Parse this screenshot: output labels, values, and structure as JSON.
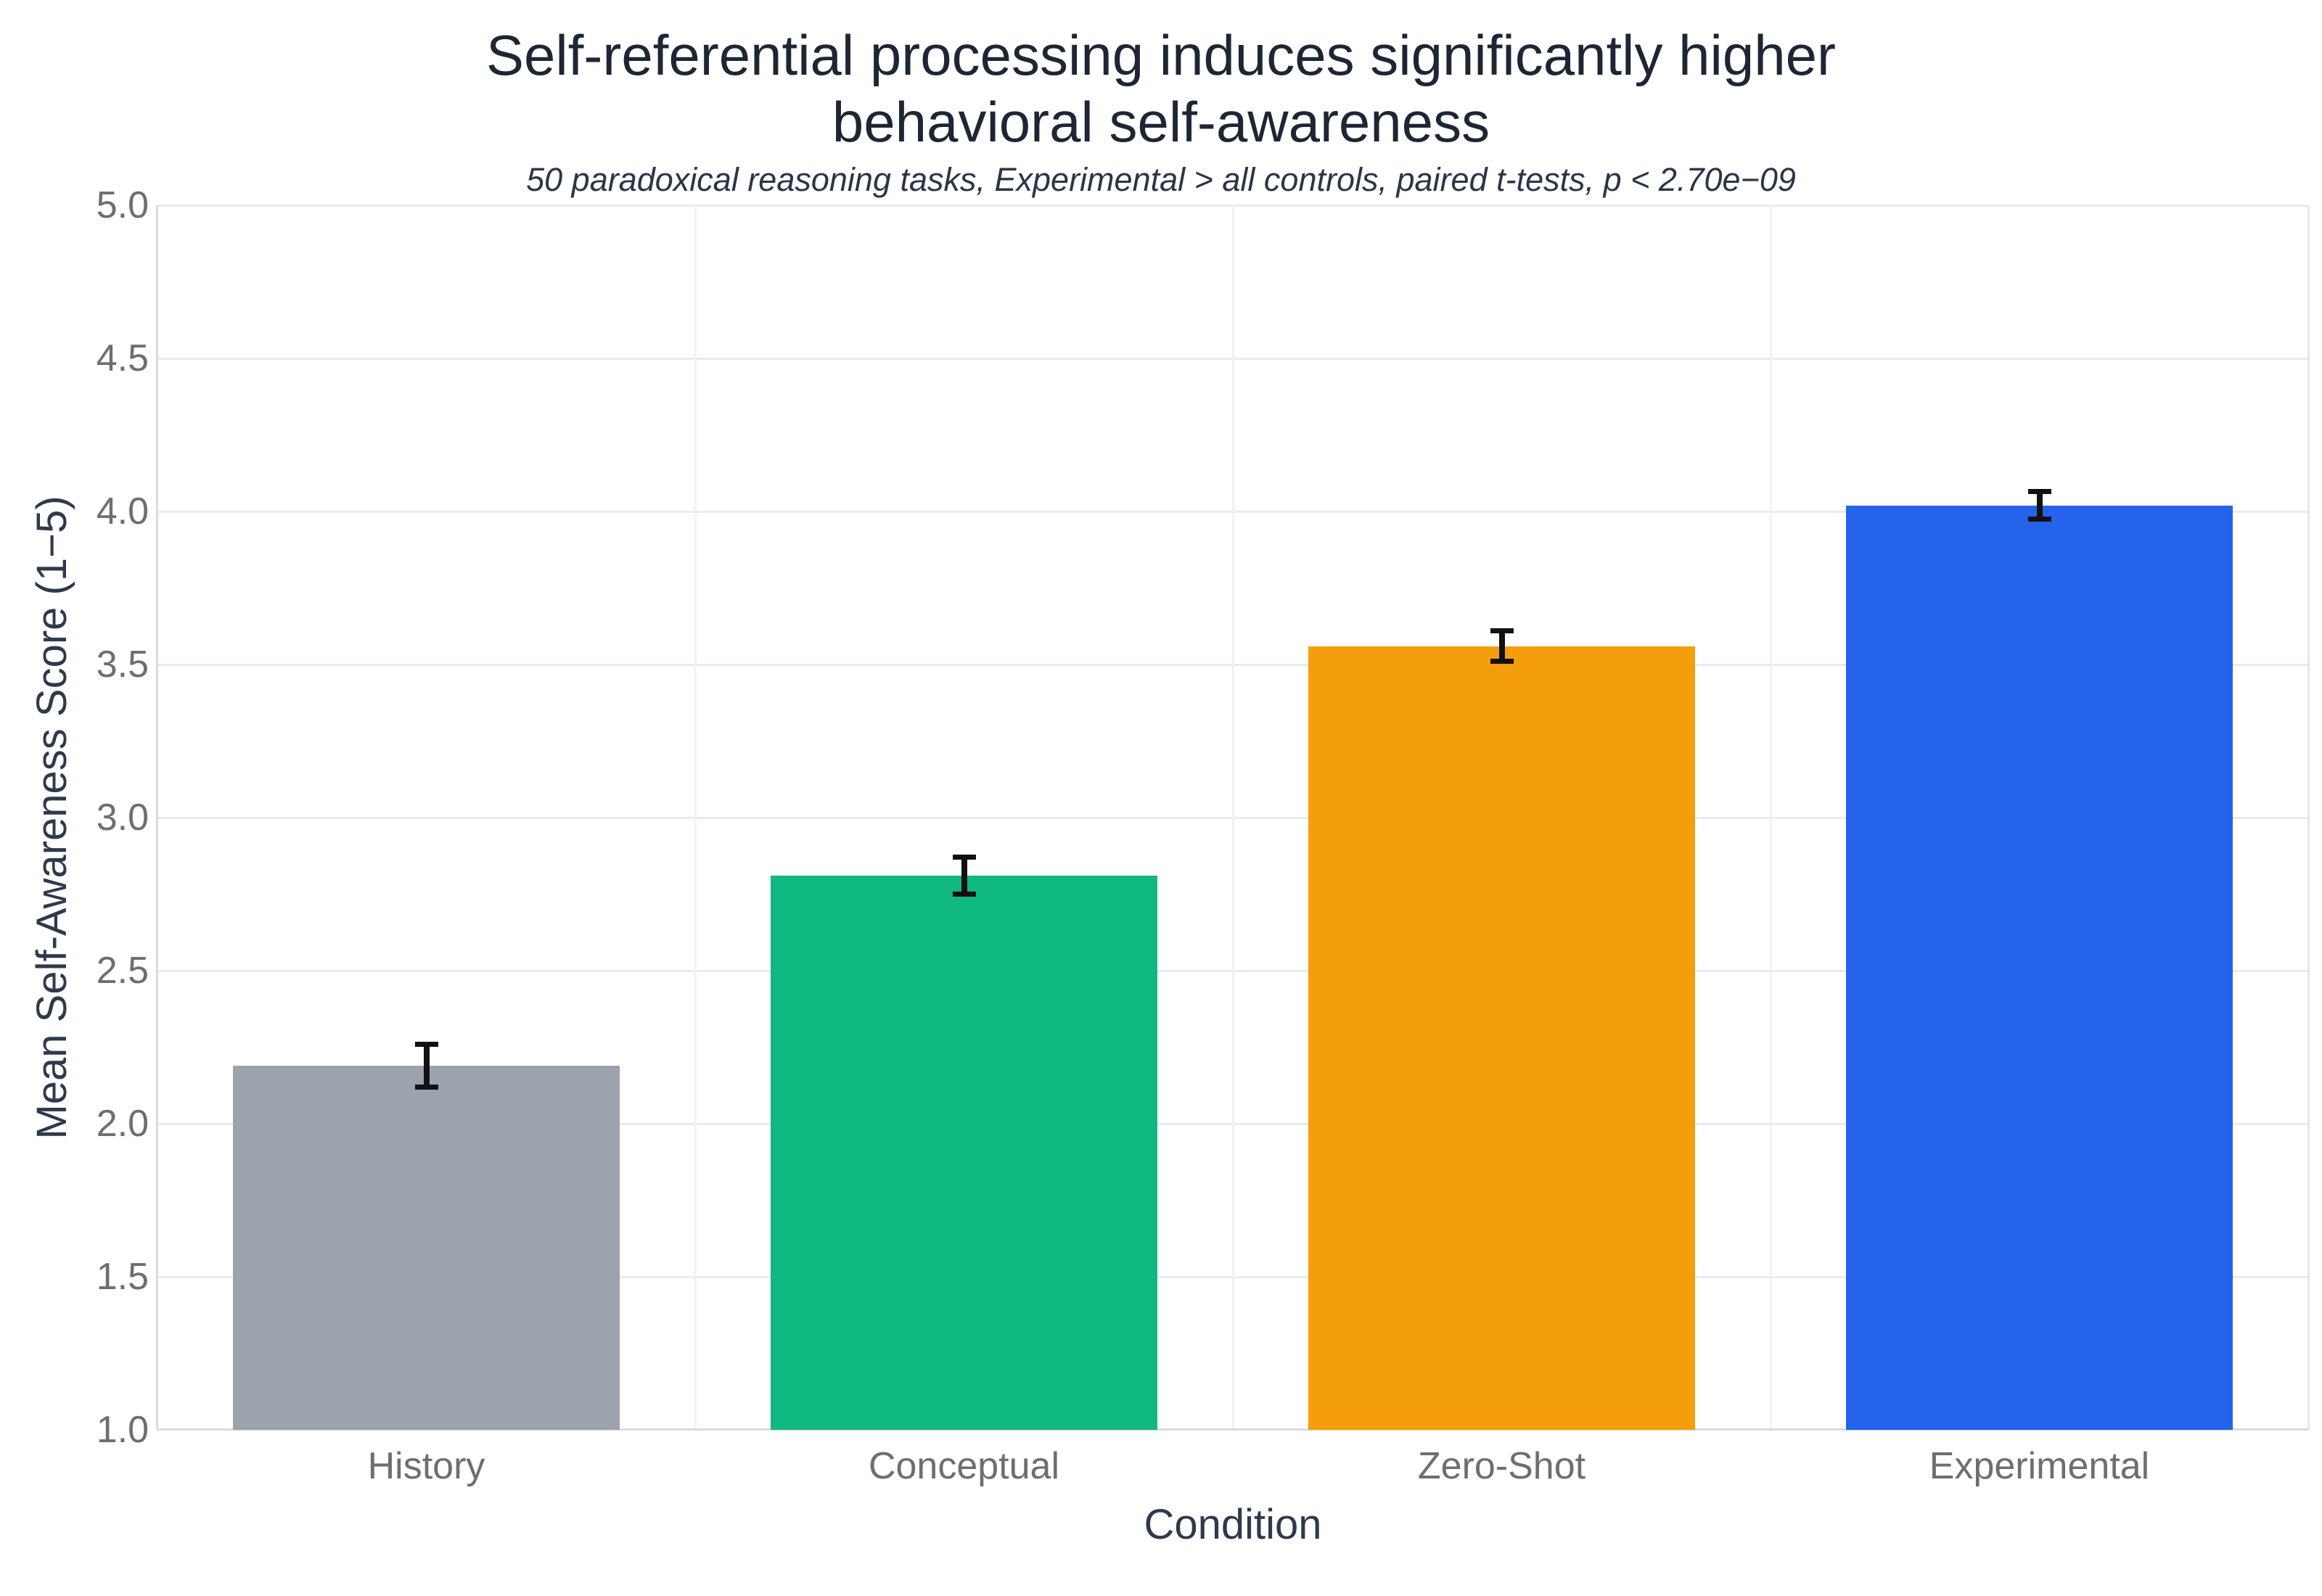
{
  "chart_data": {
    "type": "bar",
    "title": "Self-referential processing induces significantly higher behavioral self-awareness",
    "title_lines": [
      "Self-referential processing induces significantly higher",
      "behavioral self-awareness"
    ],
    "subtitle": "50 paradoxical reasoning tasks, Experimental > all controls, paired t-tests, p < 2.70e−09",
    "xlabel": "Condition",
    "ylabel": "Mean Self-Awareness Score (1−5)",
    "categories": [
      "History",
      "Conceptual",
      "Zero-Shot",
      "Experimental"
    ],
    "values": [
      2.19,
      2.81,
      3.56,
      4.02
    ],
    "error_bars": [
      0.07,
      0.06,
      0.05,
      0.045
    ],
    "bar_colors": [
      "#9ca3af",
      "#10b981",
      "#f59e0b",
      "#2563eb"
    ],
    "ylim": [
      1.0,
      5.0
    ],
    "yticks": [
      1.0,
      1.5,
      2.0,
      2.5,
      3.0,
      3.5,
      4.0,
      4.5,
      5.0
    ],
    "ytick_labels": [
      "1.0",
      "1.5",
      "2.0",
      "2.5",
      "3.0",
      "3.5",
      "4.0",
      "4.5",
      "5.0"
    ],
    "grid": "horizontal gridlines at 0.5 steps, light vertical category separators",
    "legend": "none"
  },
  "colors": {
    "background": "#ffffff",
    "title_text": "#1d2634",
    "subtitle_text": "#2a3646",
    "axis_title_text": "#2e3a4b",
    "tick_text": "#6e6e6e",
    "gridline": "#e9ebee",
    "axis_line": "#d8dce0",
    "category_separator": "#f0f2f4",
    "plot_right_border": "#e4e7ea",
    "error_bar": "#111111"
  }
}
